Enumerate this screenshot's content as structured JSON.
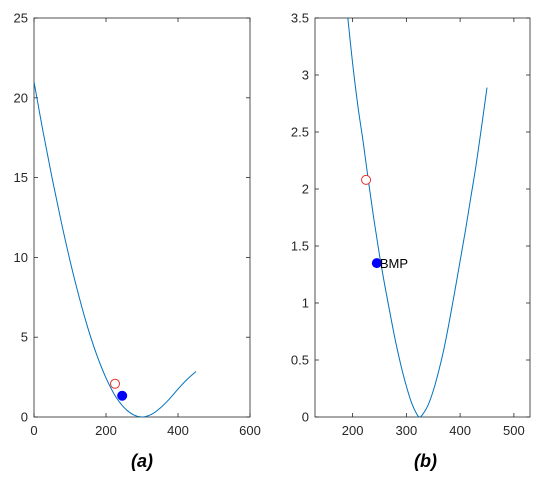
{
  "colors": {
    "curve": "#0072BD",
    "axis": "#262626",
    "marker_open": "#E8312A",
    "marker_filled": "#0000FF"
  },
  "chart_data": [
    {
      "type": "line",
      "panel_label": "(a)",
      "xlim": [
        0,
        600
      ],
      "ylim": [
        0,
        25
      ],
      "xticks": [
        0,
        200,
        400,
        600
      ],
      "xtick_labels": [
        "0",
        "200",
        "400",
        "600"
      ],
      "yticks": [
        0,
        5,
        10,
        15,
        20,
        25
      ],
      "ytick_labels": [
        "0",
        "5",
        "10",
        "15",
        "20",
        "25"
      ],
      "grid": false,
      "series": [
        {
          "x": [
            0,
            25,
            50,
            75,
            100,
            125,
            150,
            175,
            200,
            225,
            250,
            275,
            300,
            325,
            350,
            375,
            400,
            425,
            450
          ],
          "y": [
            21.0,
            17.9,
            15.0,
            12.3,
            9.8,
            7.55,
            5.55,
            3.85,
            2.45,
            1.35,
            0.6,
            0.15,
            0.0,
            0.15,
            0.55,
            1.1,
            1.75,
            2.35,
            2.85
          ]
        }
      ],
      "markers": [
        {
          "style": "open",
          "x": 225,
          "y": 2.08
        },
        {
          "style": "filled",
          "x": 245,
          "y": 1.33
        }
      ]
    },
    {
      "type": "line",
      "panel_label": "(b)",
      "xlim": [
        130,
        530
      ],
      "ylim": [
        0,
        3.5
      ],
      "xticks": [
        200,
        300,
        400,
        500
      ],
      "xtick_labels": [
        "200",
        "300",
        "400",
        "500"
      ],
      "yticks": [
        0,
        0.5,
        1,
        1.5,
        2,
        2.5,
        3,
        3.5
      ],
      "ytick_labels": [
        "0",
        "0.5",
        "1",
        "1.5",
        "2",
        "2.5",
        "3",
        "3.5"
      ],
      "grid": false,
      "series": [
        {
          "x": [
            190,
            200,
            210,
            220,
            230,
            240,
            250,
            260,
            270,
            280,
            290,
            300,
            310,
            320,
            325,
            330,
            340,
            350,
            360,
            370,
            380,
            390,
            400,
            410,
            420,
            430,
            440,
            450
          ],
          "y": [
            3.55,
            3.1,
            2.72,
            2.4,
            2.05,
            1.72,
            1.42,
            1.15,
            0.9,
            0.66,
            0.45,
            0.27,
            0.12,
            0.02,
            0.0,
            0.02,
            0.1,
            0.23,
            0.4,
            0.6,
            0.84,
            1.1,
            1.37,
            1.64,
            1.93,
            2.22,
            2.55,
            2.89
          ]
        }
      ],
      "markers": [
        {
          "style": "open",
          "x": 225,
          "y": 2.08
        },
        {
          "style": "filled",
          "x": 245,
          "y": 1.35,
          "label": "BMP"
        }
      ]
    }
  ]
}
